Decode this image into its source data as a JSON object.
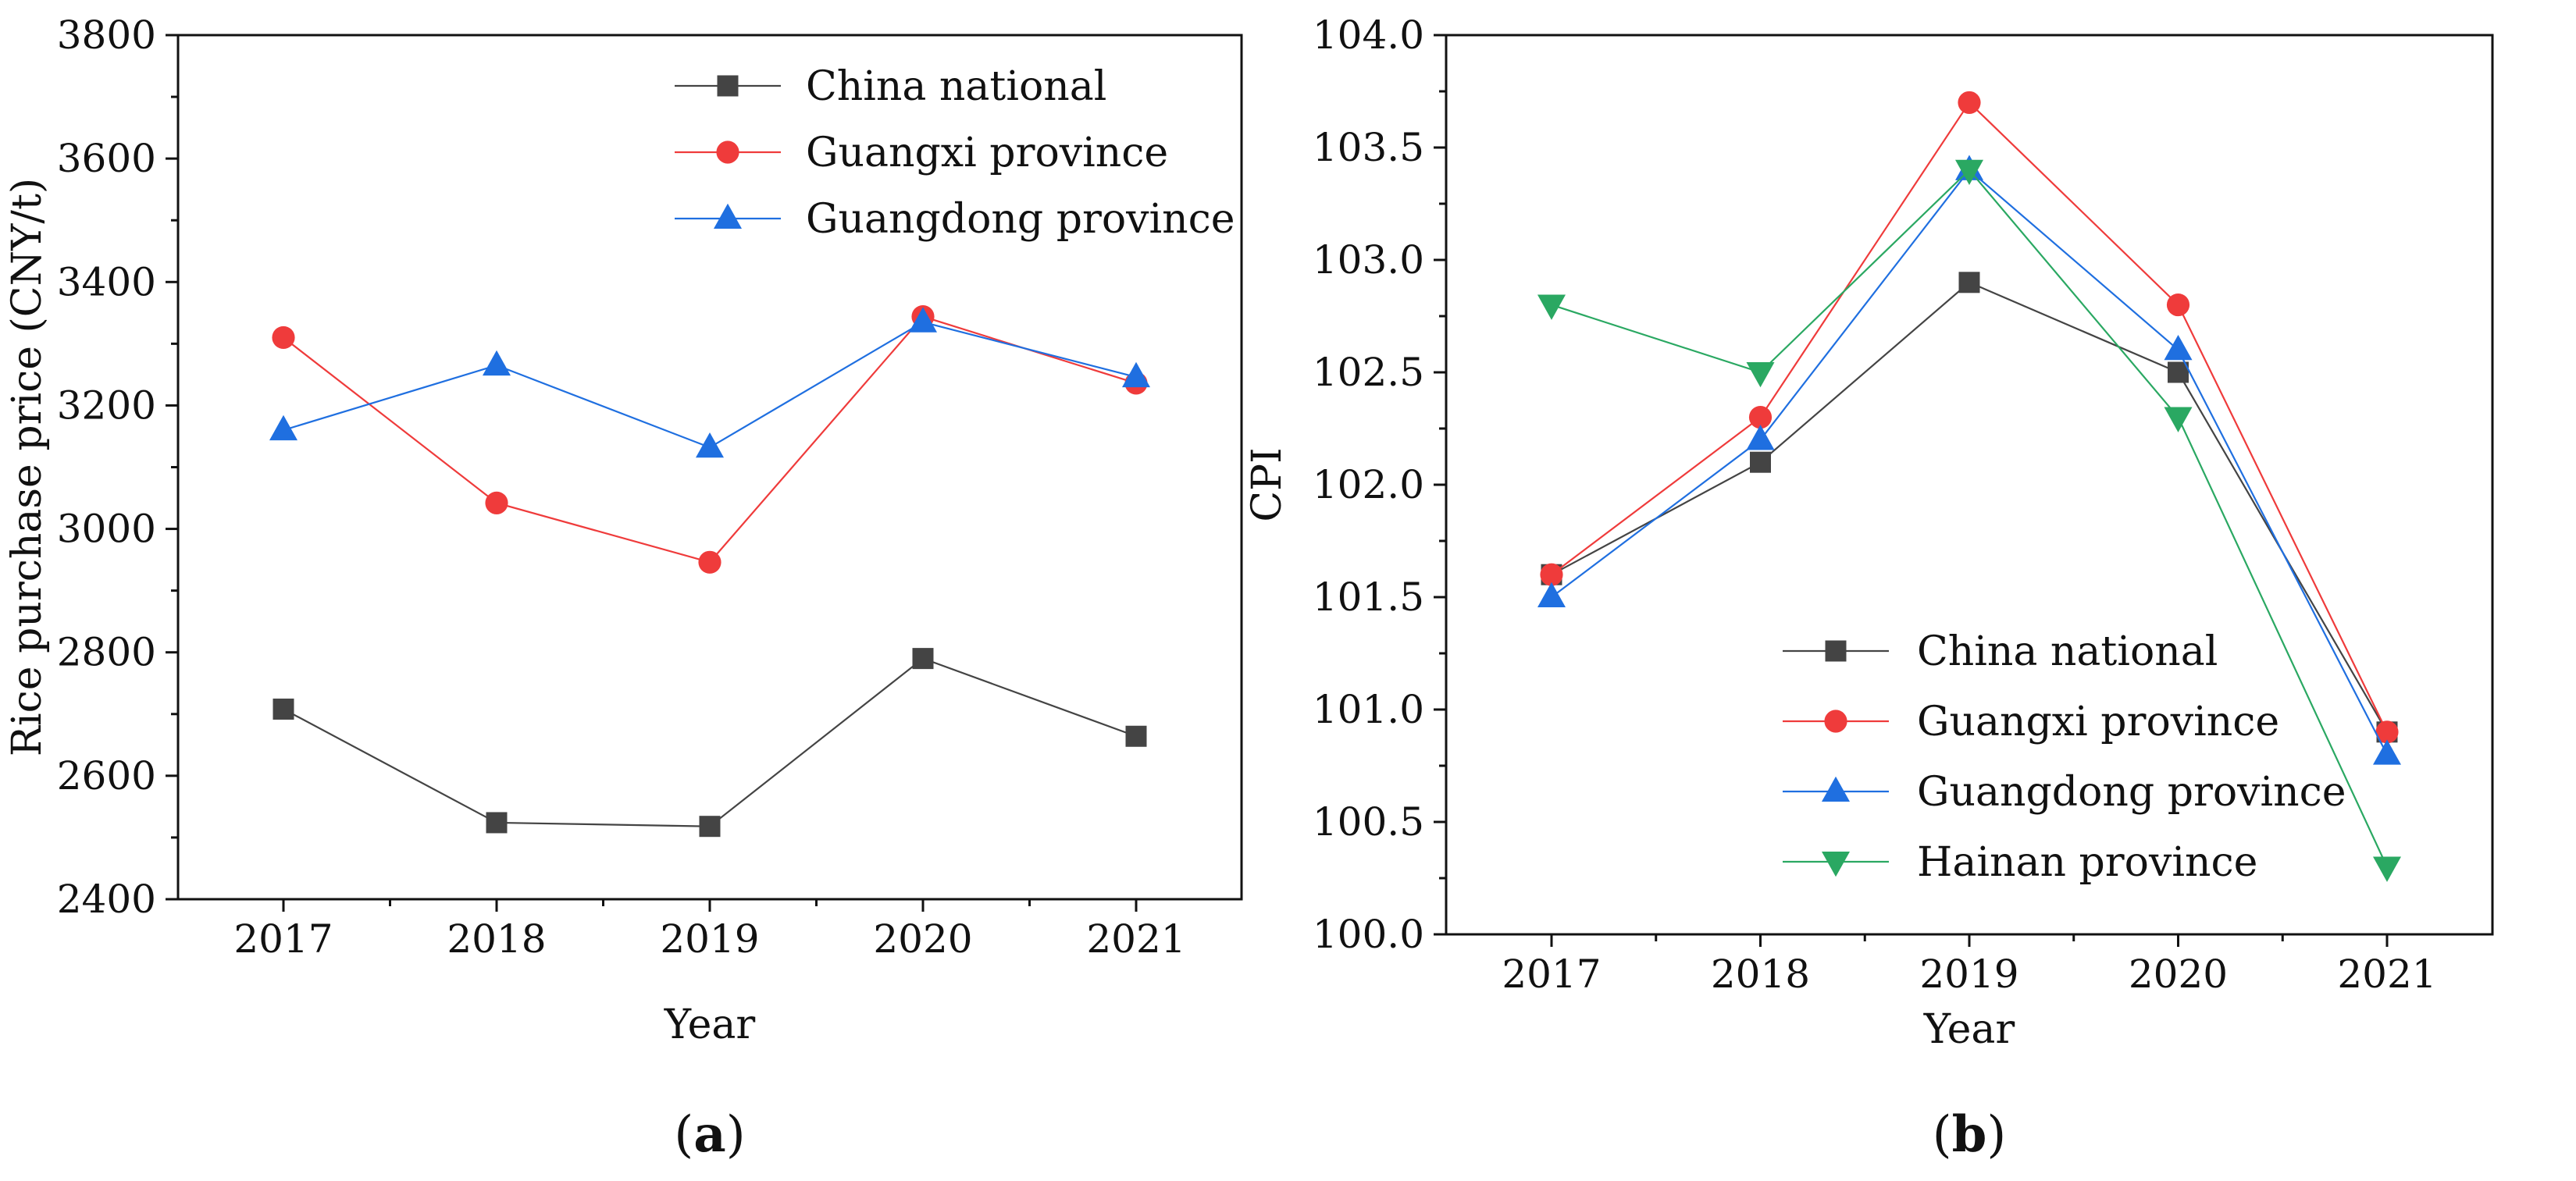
{
  "colors": {
    "China national": "#444444",
    "Guangxi province": "#ef3b3b",
    "Guangdong province": "#1f6fe0",
    "Hainan province": "#2aa862"
  },
  "chart_data": [
    {
      "type": "line",
      "panel_label": "(a)",
      "panel_letter": "a",
      "xlabel": "Year",
      "ylabel": "Rice purchase price (CNY/t)",
      "categories": [
        "2017",
        "2018",
        "2019",
        "2020",
        "2021"
      ],
      "ylim": [
        2400,
        3800
      ],
      "yticks": [
        2400,
        2600,
        2800,
        3000,
        3200,
        3400,
        3600,
        3800
      ],
      "ytick_labels": [
        "2400",
        "2600",
        "2800",
        "3000",
        "3200",
        "3400",
        "3600",
        "3800"
      ],
      "legend_position": "top-right",
      "series": [
        {
          "name": "China national",
          "marker": "square",
          "values": [
            2708,
            2524,
            2518,
            2790,
            2664
          ]
        },
        {
          "name": "Guangxi province",
          "marker": "circle",
          "values": [
            3310,
            3042,
            2946,
            3344,
            3236
          ]
        },
        {
          "name": "Guangdong province",
          "marker": "triangle-up",
          "values": [
            3160,
            3265,
            3132,
            3335,
            3246
          ]
        }
      ]
    },
    {
      "type": "line",
      "panel_label": "(b)",
      "panel_letter": "b",
      "xlabel": "Year",
      "ylabel": "CPI",
      "categories": [
        "2017",
        "2018",
        "2019",
        "2020",
        "2021"
      ],
      "ylim": [
        100.0,
        104.0
      ],
      "yticks": [
        100.0,
        100.5,
        101.0,
        101.5,
        102.0,
        102.5,
        103.0,
        103.5,
        104.0
      ],
      "ytick_labels": [
        "100.0",
        "100.5",
        "101.0",
        "101.5",
        "102.0",
        "102.5",
        "103.0",
        "103.5",
        "104.0"
      ],
      "legend_position": "bottom-right",
      "series": [
        {
          "name": "China national",
          "marker": "square",
          "values": [
            101.6,
            102.1,
            102.9,
            102.5,
            100.9
          ]
        },
        {
          "name": "Guangxi province",
          "marker": "circle",
          "values": [
            101.6,
            102.3,
            103.7,
            102.8,
            100.9
          ]
        },
        {
          "name": "Guangdong province",
          "marker": "triangle-up",
          "values": [
            101.5,
            102.2,
            103.4,
            102.6,
            100.8
          ]
        },
        {
          "name": "Hainan province",
          "marker": "triangle-down",
          "values": [
            102.8,
            102.5,
            103.4,
            102.3,
            100.3
          ]
        }
      ]
    }
  ]
}
